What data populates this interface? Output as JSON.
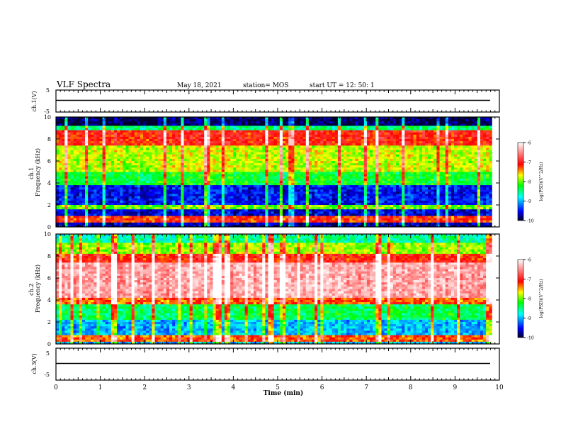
{
  "header": {
    "title": "VLF Spectra",
    "date": "May 18, 2021",
    "station": "station= MOS",
    "start": "start  UT =   12: 50: 1"
  },
  "chart_data": [
    {
      "type": "line",
      "panel": "ch1-waveform",
      "ylabel": "ch.1(V)",
      "ylim": [
        -5,
        5
      ],
      "yticks": [
        -5,
        5
      ],
      "value_mean": 0
    },
    {
      "type": "heatmap",
      "panel": "ch1-spectrogram",
      "ylabel": "ch.1\nFrequency (kHz)",
      "ylim": [
        0,
        10
      ],
      "yticks": [
        "0",
        "2",
        "4",
        "6",
        "8",
        "10"
      ],
      "xlim": [
        0,
        10
      ],
      "data_end_min": 9.83,
      "colorbar": {
        "label": "log(PSD)(V^2/Hz)",
        "range": [
          -10,
          -6
        ],
        "ticks": [
          "-10",
          "-9",
          "-8",
          "-7",
          "-6"
        ]
      },
      "bands": [
        {
          "f": [
            0.0,
            0.35
          ],
          "level": -9.7
        },
        {
          "f": [
            0.35,
            0.95
          ],
          "level": -7.2
        },
        {
          "f": [
            0.95,
            1.6
          ],
          "level": -9.6
        },
        {
          "f": [
            1.6,
            2.0
          ],
          "level": -8.0
        },
        {
          "f": [
            2.0,
            3.8
          ],
          "level": -9.5
        },
        {
          "f": [
            3.8,
            5.0
          ],
          "level": -8.3
        },
        {
          "f": [
            5.0,
            7.5
          ],
          "level": -7.8
        },
        {
          "f": [
            7.5,
            8.8
          ],
          "level": -7.1
        },
        {
          "f": [
            8.8,
            9.3
          ],
          "level": -8.5
        },
        {
          "f": [
            9.3,
            10.0
          ],
          "level": -9.9
        }
      ]
    },
    {
      "type": "heatmap",
      "panel": "ch2-spectrogram",
      "ylabel": "ch.2\nFrequency (kHz)",
      "ylim": [
        0,
        10
      ],
      "yticks": [
        "0",
        "2",
        "4",
        "6",
        "8",
        "10"
      ],
      "xlim": [
        0,
        10
      ],
      "data_end_min": 9.83,
      "colorbar": {
        "label": "log(PSD)(V^2/Hz)",
        "range": [
          -10,
          -6
        ],
        "ticks": [
          "-10",
          "-9",
          "-8",
          "-7",
          "-6"
        ]
      },
      "bands": [
        {
          "f": [
            0.0,
            0.3
          ],
          "level": -9.0
        },
        {
          "f": [
            0.3,
            0.9
          ],
          "level": -7.3
        },
        {
          "f": [
            0.9,
            2.2
          ],
          "level": -9.0
        },
        {
          "f": [
            2.2,
            3.6
          ],
          "level": -8.4
        },
        {
          "f": [
            3.6,
            4.2
          ],
          "level": -7.3
        },
        {
          "f": [
            4.2,
            7.4
          ],
          "level": -6.4
        },
        {
          "f": [
            7.4,
            8.3
          ],
          "level": -7.1
        },
        {
          "f": [
            8.3,
            9.2
          ],
          "level": -7.9
        },
        {
          "f": [
            9.2,
            10.0
          ],
          "level": -8.6
        }
      ]
    },
    {
      "type": "line",
      "panel": "ch3-waveform",
      "ylabel": "ch.3(V)",
      "ylim": [
        -5,
        5
      ],
      "yticks": [
        -5,
        5
      ],
      "value_mean": 0
    }
  ],
  "x_axis": {
    "label": "Time  (min)",
    "range": [
      0,
      10
    ],
    "ticks": [
      "0",
      "1",
      "2",
      "3",
      "4",
      "5",
      "6",
      "7",
      "8",
      "9",
      "10"
    ]
  },
  "colors": {
    "colormap": [
      "#00002a",
      "#0000ff",
      "#00ffff",
      "#00ff00",
      "#ffff00",
      "#ff0000",
      "#ffffff"
    ],
    "frame": "#000000"
  }
}
